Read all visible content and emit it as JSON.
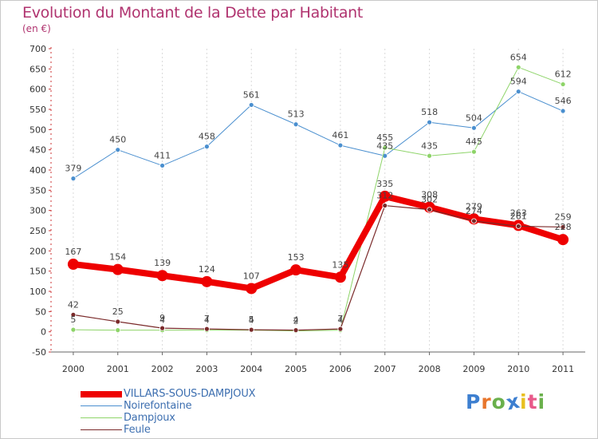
{
  "title": "Evolution du Montant de la Dette par Habitant",
  "subtitle": "(en €)",
  "logo": "Proxiti",
  "logo_colors": [
    "#3d7fd0",
    "#e8762c",
    "#6ab04c",
    "#3d7fd0",
    "#e8c020",
    "#e85a8a",
    "#6ab04c"
  ],
  "chart_data": {
    "type": "line",
    "title": "Evolution du Montant de la Dette par Habitant",
    "subtitle": "(en €)",
    "xlabel": "",
    "ylabel": "",
    "x": [
      "2000",
      "2001",
      "2002",
      "2003",
      "2004",
      "2005",
      "2006",
      "2007",
      "2008",
      "2009",
      "2010",
      "2011"
    ],
    "ylim": [
      -50,
      700
    ],
    "yticks": [
      -50,
      0,
      50,
      100,
      150,
      200,
      250,
      300,
      350,
      400,
      450,
      500,
      550,
      600,
      650,
      700
    ],
    "grid": "vertical dashed",
    "legend_position": "bottom-left",
    "series": [
      {
        "name": "VILLARS-SOUS-DAMPJOUX",
        "color": "#ee0000",
        "values": [
          167,
          154,
          139,
          124,
          107,
          153,
          135,
          335,
          308,
          279,
          263,
          228
        ],
        "labels": [
          "167",
          "154",
          "139",
          "124",
          "107",
          "153",
          "135",
          "335",
          "308",
          "279",
          "263",
          "228"
        ]
      },
      {
        "name": "Noirefontaine",
        "color": "#4a8fcf",
        "values": [
          379,
          450,
          411,
          458,
          561,
          513,
          461,
          435,
          518,
          504,
          594,
          546
        ],
        "labels": [
          "379",
          "450",
          "411",
          "458",
          "561",
          "513",
          "461",
          "435",
          "518",
          "504",
          "594",
          "546"
        ]
      },
      {
        "name": "Dampjoux",
        "color": "#8ed469",
        "values": [
          5,
          4,
          4,
          4,
          4,
          2,
          4,
          455,
          435,
          445,
          654,
          612
        ],
        "labels": [
          "5",
          "",
          "4",
          "4",
          "4",
          "2",
          "4",
          "455",
          "435",
          "445",
          "654",
          "612"
        ]
      },
      {
        "name": "Feule",
        "color": "#7a2a2a",
        "values": [
          42,
          25,
          9,
          7,
          5,
          4,
          7,
          312,
          302,
          274,
          261,
          259
        ],
        "labels": [
          "42",
          "25",
          "9",
          "7",
          "5",
          "4",
          "7",
          "312",
          "302",
          "274",
          "261",
          "259"
        ]
      }
    ]
  }
}
